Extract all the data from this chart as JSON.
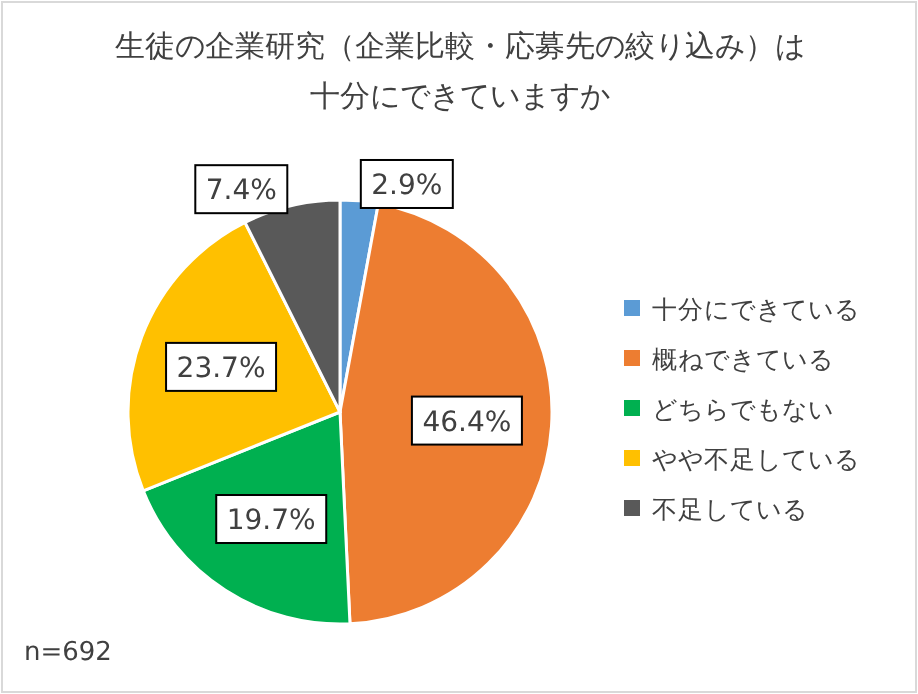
{
  "chart_data": {
    "type": "pie",
    "title": "生徒の企業研究（企業比較・応募先の絞り込み）は十分にできていますか",
    "categories": [
      "十分にできている",
      "概ねできている",
      "どちらでもない",
      "やや不足している",
      "不足している"
    ],
    "values": [
      2.9,
      46.4,
      19.7,
      23.7,
      7.4
    ],
    "colors": [
      "#5b9bd5",
      "#ed7d31",
      "#00b050",
      "#ffc000",
      "#595959"
    ],
    "value_labels": [
      "2.9%",
      "46.4%",
      "19.7%",
      "23.7%",
      "7.4%"
    ],
    "legend": "right",
    "annotations": [
      "n=692"
    ]
  }
}
